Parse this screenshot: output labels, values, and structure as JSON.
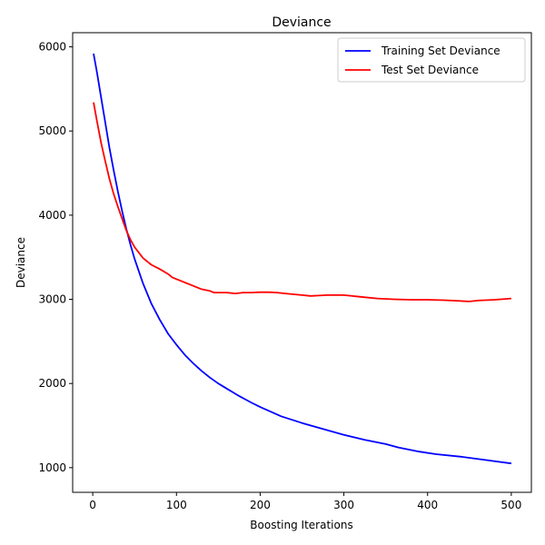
{
  "chart_data": {
    "type": "line",
    "title": "Deviance",
    "xlabel": "Boosting Iterations",
    "ylabel": "Deviance",
    "xlim": [
      -24,
      524
    ],
    "ylim": [
      707,
      6168
    ],
    "xticks": [
      0,
      100,
      200,
      300,
      400,
      500
    ],
    "yticks": [
      1000,
      2000,
      3000,
      4000,
      5000,
      6000
    ],
    "grid": false,
    "legend_position": "top-right",
    "series": [
      {
        "name": "Training Set Deviance",
        "color": "#0000ff",
        "x": [
          1,
          5,
          10,
          15,
          20,
          25,
          30,
          35,
          40,
          45,
          50,
          60,
          70,
          80,
          90,
          100,
          110,
          120,
          130,
          140,
          150,
          160,
          175,
          190,
          200,
          225,
          250,
          275,
          300,
          325,
          350,
          365,
          390,
          410,
          440,
          470,
          500
        ],
        "values": [
          5920,
          5700,
          5400,
          5100,
          4800,
          4530,
          4280,
          4050,
          3840,
          3650,
          3480,
          3190,
          2950,
          2760,
          2590,
          2460,
          2340,
          2240,
          2150,
          2070,
          2000,
          1940,
          1850,
          1770,
          1720,
          1610,
          1530,
          1460,
          1390,
          1330,
          1280,
          1240,
          1190,
          1160,
          1130,
          1090,
          1050
        ]
      },
      {
        "name": "Test Set Deviance",
        "color": "#ff0000",
        "x": [
          1,
          5,
          10,
          15,
          20,
          25,
          30,
          35,
          40,
          45,
          50,
          60,
          70,
          80,
          90,
          95,
          100,
          110,
          120,
          130,
          140,
          145,
          150,
          160,
          170,
          180,
          190,
          200,
          210,
          220,
          230,
          240,
          250,
          260,
          270,
          280,
          290,
          300,
          320,
          340,
          360,
          380,
          400,
          420,
          440,
          450,
          460,
          480,
          500
        ],
        "values": [
          5340,
          5120,
          4860,
          4640,
          4430,
          4250,
          4100,
          3960,
          3820,
          3710,
          3620,
          3490,
          3410,
          3360,
          3300,
          3260,
          3240,
          3200,
          3160,
          3120,
          3100,
          3080,
          3080,
          3080,
          3070,
          3080,
          3080,
          3085,
          3085,
          3080,
          3070,
          3060,
          3050,
          3040,
          3045,
          3050,
          3050,
          3050,
          3030,
          3010,
          3000,
          2995,
          2995,
          2990,
          2980,
          2975,
          2985,
          2995,
          3010
        ]
      }
    ]
  }
}
